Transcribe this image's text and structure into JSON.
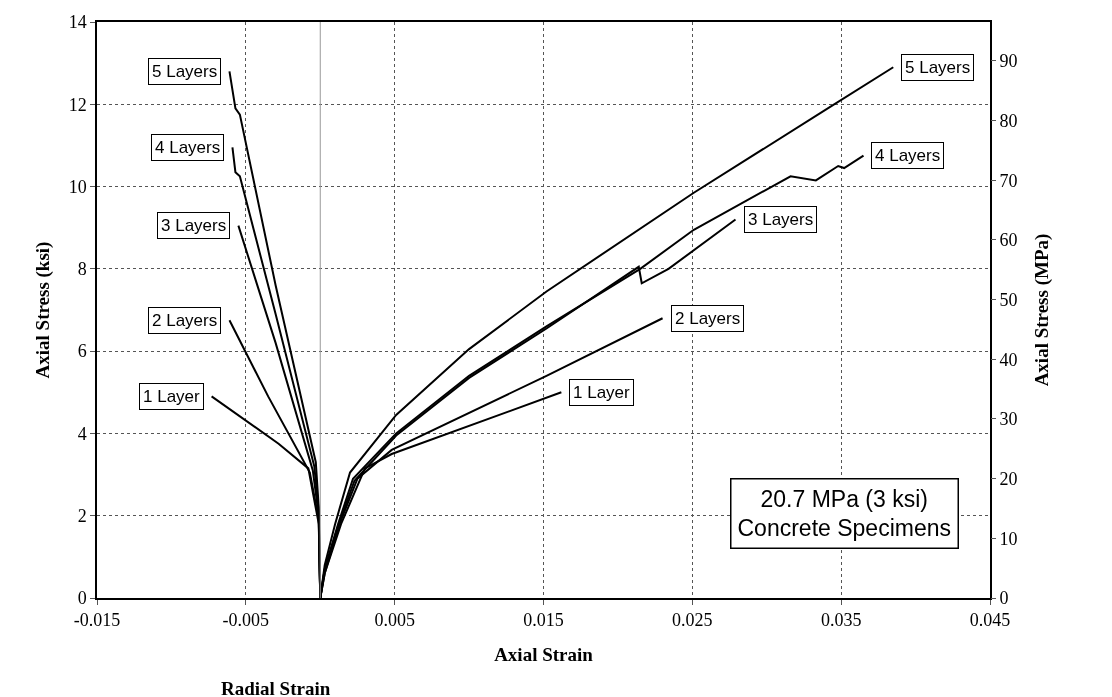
{
  "chart_data": {
    "type": "line",
    "ylabel": "Axial Stress (ksi)",
    "y2label": "Axial Stress (MPa)",
    "xlabel": "Axial Strain",
    "annotations": [
      "Radial Strain",
      "20.7 MPa (3 ksi)\nConcrete Specimens"
    ],
    "xlim": [
      -0.015,
      0.045
    ],
    "xticks": [
      -0.015,
      -0.005,
      0.005,
      0.015,
      0.025,
      0.035,
      0.045
    ],
    "ylim": [
      0,
      14
    ],
    "yticks": [
      0,
      2,
      4,
      6,
      8,
      10,
      12,
      14
    ],
    "y2lim": [
      0,
      96.53
    ],
    "y2ticks": [
      0,
      10,
      20,
      30,
      40,
      50,
      60,
      70,
      80,
      90
    ],
    "grid": true,
    "legend": false,
    "marker": "none",
    "line_style": "solid",
    "ref_lines": [
      {
        "axis": "x",
        "value": 0,
        "color": "#999999",
        "line_style": "solid"
      }
    ],
    "series": [
      {
        "name": "5 Layers",
        "color": "#000000",
        "x": [
          0,
          -0.0001,
          -0.0003,
          -0.003,
          -0.0054,
          -0.0057,
          -0.0061
        ],
        "values": [
          0,
          2.2,
          3.3,
          7.6,
          11.75,
          11.9,
          12.8
        ]
      },
      {
        "name": "4 Layers",
        "color": "#000000",
        "x": [
          0,
          -0.0001,
          -0.0004,
          -0.003,
          -0.0054,
          -0.0057,
          -0.0059
        ],
        "values": [
          0,
          2.1,
          3.2,
          6.9,
          10.25,
          10.35,
          10.95
        ]
      },
      {
        "name": "3 Layers",
        "color": "#000000",
        "x": [
          0,
          -0.0001,
          -0.0005,
          -0.003,
          -0.0055
        ],
        "values": [
          0,
          2.0,
          3.1,
          6.2,
          9.05
        ]
      },
      {
        "name": "2 Layers",
        "color": "#000000",
        "x": [
          0,
          -0.0001,
          -0.0007,
          -0.0035,
          -0.0061
        ],
        "values": [
          0,
          1.9,
          3.05,
          4.9,
          6.75
        ]
      },
      {
        "name": "1 Layer",
        "color": "#000000",
        "x": [
          0,
          -0.0001,
          -0.0008,
          -0.0028,
          -0.0073
        ],
        "values": [
          0,
          1.8,
          3.15,
          3.75,
          4.9
        ]
      },
      {
        "name": "5 Layers",
        "color": "#000000",
        "x": [
          0,
          0.0003,
          0.001,
          0.002,
          0.0051,
          0.01,
          0.0152,
          0.0251,
          0.0341,
          0.0385
        ],
        "values": [
          0,
          0.8,
          1.8,
          3.05,
          4.45,
          6.05,
          7.45,
          9.85,
          11.9,
          12.9
        ]
      },
      {
        "name": "4 Layers",
        "color": "#000000",
        "x": [
          0,
          0.0003,
          0.0012,
          0.0022,
          0.0051,
          0.01,
          0.0152,
          0.0215,
          0.0251,
          0.0316,
          0.0333,
          0.0348,
          0.0352,
          0.0365
        ],
        "values": [
          0,
          0.7,
          1.8,
          2.9,
          4.0,
          5.4,
          6.6,
          8.0,
          8.95,
          10.25,
          10.15,
          10.5,
          10.45,
          10.75
        ]
      },
      {
        "name": "3 Layers",
        "color": "#000000",
        "x": [
          0,
          0.0003,
          0.0012,
          0.0023,
          0.0051,
          0.01,
          0.0152,
          0.0214,
          0.0216,
          0.0234,
          0.0279
        ],
        "values": [
          0,
          0.7,
          1.75,
          2.85,
          3.95,
          5.35,
          6.55,
          8.05,
          7.65,
          8.0,
          9.2
        ]
      },
      {
        "name": "2 Layers",
        "color": "#000000",
        "x": [
          0,
          0.0003,
          0.0013,
          0.0025,
          0.0048,
          0.0152,
          0.023
        ],
        "values": [
          0,
          0.6,
          1.8,
          2.9,
          3.6,
          5.4,
          6.8
        ]
      },
      {
        "name": "1 Layer",
        "color": "#000000",
        "x": [
          0,
          0.0003,
          0.0014,
          0.003,
          0.0048,
          0.0162
        ],
        "values": [
          0,
          0.6,
          1.8,
          3.15,
          3.5,
          5.0
        ]
      }
    ]
  }
}
